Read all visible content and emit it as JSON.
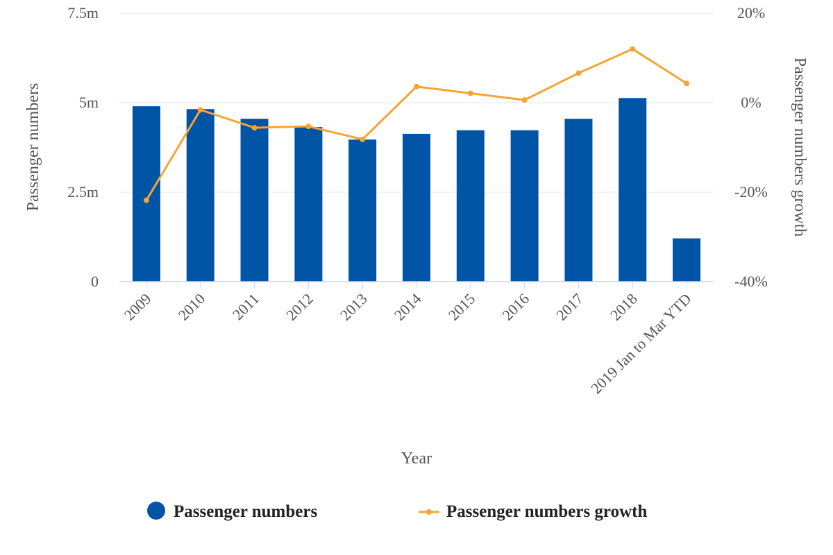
{
  "chart_data": {
    "type": "bar",
    "title": "",
    "xlabel": "Year",
    "ylabel": "Passenger numbers",
    "y2label": "Passenger numbers growth",
    "categories": [
      "2009",
      "2010",
      "2011",
      "2012",
      "2013",
      "2014",
      "2015",
      "2016",
      "2017",
      "2018",
      "2019 Jan to Mar YTD"
    ],
    "ylim": [
      0,
      7.5
    ],
    "y_ticks": [
      0,
      2.5,
      5,
      7.5
    ],
    "y_tick_labels": [
      "0",
      "2.5m",
      "5m",
      "7.5m"
    ],
    "y2lim": [
      -40,
      20
    ],
    "y2_ticks": [
      -40,
      -20,
      0,
      20
    ],
    "y2_tick_labels": [
      "-40%",
      "-20%",
      "0%",
      "20%"
    ],
    "grid": true,
    "legend_position": "bottom-center",
    "series": [
      {
        "name": "Passenger numbers",
        "type": "bar",
        "axis": "left",
        "color": "#0054a6",
        "values": [
          4.9,
          4.82,
          4.55,
          4.32,
          3.97,
          4.13,
          4.23,
          4.23,
          4.55,
          5.13,
          1.21
        ]
      },
      {
        "name": "Passenger numbers growth",
        "type": "line",
        "axis": "right",
        "color": "#f6a432",
        "values": [
          -21.8,
          -1.6,
          -5.6,
          -5.3,
          -8.2,
          3.6,
          2.1,
          0.6,
          6.6,
          12.0,
          4.3
        ]
      }
    ]
  }
}
